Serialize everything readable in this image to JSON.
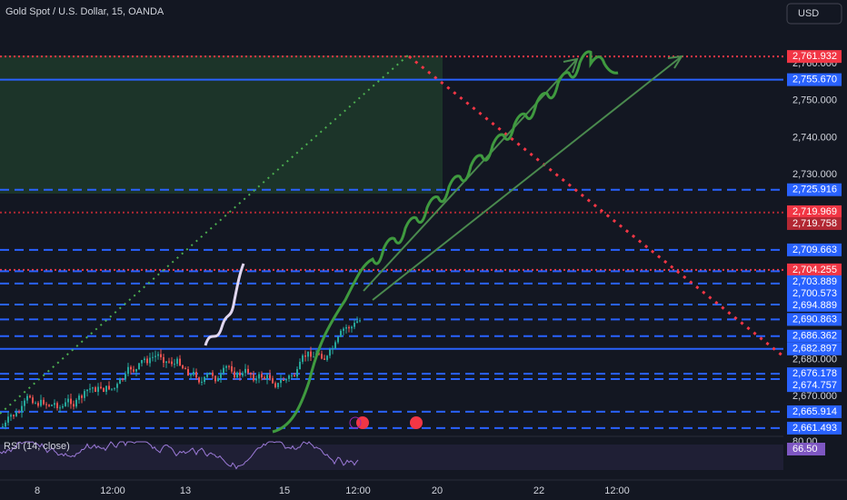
{
  "header": {
    "title": "Gold Spot / U.S. Dollar, 15, OANDA",
    "currency": "USD"
  },
  "price_scale": {
    "ticks": [
      {
        "value": 2760,
        "label": "2,760.000"
      },
      {
        "value": 2750,
        "label": "2,750.000"
      },
      {
        "value": 2740,
        "label": "2,740.000"
      },
      {
        "value": 2730,
        "label": "2,730.000"
      },
      {
        "value": 2680,
        "label": "2,680.000"
      },
      {
        "value": 2670,
        "label": "2,670.000"
      }
    ],
    "levels": [
      {
        "value": 2761.932,
        "label": "2,761.932",
        "color": "#f23645",
        "style": "dotted"
      },
      {
        "value": 2755.67,
        "label": "2,755.670",
        "color": "#2962ff",
        "style": "solid"
      },
      {
        "value": 2725.916,
        "label": "2,725.916",
        "color": "#2962ff",
        "style": "dashed"
      },
      {
        "value": 2719.969,
        "label": "2,719.969",
        "color": "#f23645",
        "style": "none"
      },
      {
        "value": 2719.758,
        "label": "2,719.758",
        "color": "#b22833",
        "style": "dotted"
      },
      {
        "value": 2709.663,
        "label": "2,709.663",
        "color": "#2962ff",
        "style": "dashed"
      },
      {
        "value": 2704.255,
        "label": "2,704.255",
        "color": "#f23645",
        "style": "dotted"
      },
      {
        "value": 2703.889,
        "label": "2,703.889",
        "color": "#2962ff",
        "style": "dashed"
      },
      {
        "value": 2700.573,
        "label": "2,700.573",
        "color": "#2962ff",
        "style": "dashed"
      },
      {
        "value": 2694.889,
        "label": "2,694.889",
        "color": "#2962ff",
        "style": "dashed"
      },
      {
        "value": 2690.863,
        "label": "2,690.863",
        "color": "#2962ff",
        "style": "dashed"
      },
      {
        "value": 2686.362,
        "label": "2,686.362",
        "color": "#2962ff",
        "style": "dashed"
      },
      {
        "value": 2682.897,
        "label": "2,682.897",
        "color": "#2962ff",
        "style": "solid"
      },
      {
        "value": 2676.178,
        "label": "2,676.178",
        "color": "#2962ff",
        "style": "dashed"
      },
      {
        "value": 2674.757,
        "label": "2,674.757",
        "color": "#2962ff",
        "style": "dashed"
      },
      {
        "value": 2665.914,
        "label": "2,665.914",
        "color": "#2962ff",
        "style": "dashed"
      },
      {
        "value": 2661.493,
        "label": "2,661.493",
        "color": "#2962ff",
        "style": "dashed"
      }
    ]
  },
  "time_axis": [
    "8",
    "12:00",
    "13",
    "15",
    "12:00",
    "20",
    "22",
    "12:00"
  ],
  "rsi": {
    "label": "RSI (14, close)",
    "tick": "80.00",
    "value_label": "66.50"
  }
}
